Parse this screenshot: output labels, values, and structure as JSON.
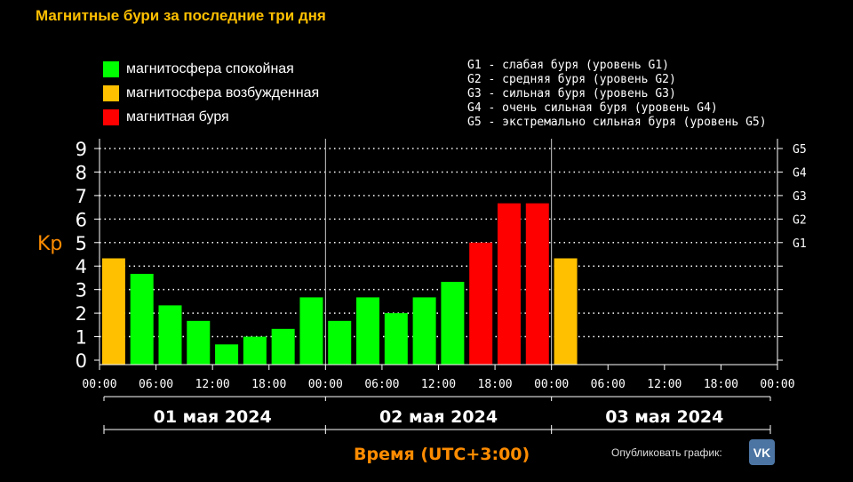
{
  "title": "Магнитные бури за последние три дня",
  "legend": [
    {
      "label": "магнитосфера спокойная",
      "color": "#00ff00"
    },
    {
      "label": "магнитосфера возбужденная",
      "color": "#ffc000"
    },
    {
      "label": "магнитная буря",
      "color": "#ff0000"
    }
  ],
  "g_legend": [
    "G1 - слабая буря (уровень G1)",
    "G2 - средняя буря (уровень G2)",
    "G3 - сильная буря (уровень G3)",
    "G4 - очень сильная буря (уровень G4)",
    "G5 - экстремально сильная буря (уровень G5)"
  ],
  "ylabel": "Kp",
  "xlabel": "Время (UTC+3:00)",
  "publish_label": "Опубликовать график:",
  "vk_icon": "vk-icon",
  "chart_data": {
    "type": "bar",
    "title": "Магнитные бури за последние три дня",
    "ylabel": "Kp",
    "xlabel": "Время (UTC+3:00)",
    "ylim": [
      0,
      9
    ],
    "yticks": [
      "0",
      "1",
      "2",
      "3",
      "4",
      "5",
      "6",
      "7",
      "8",
      "9"
    ],
    "right_ticks": [
      {
        "value": 5,
        "label": "G1"
      },
      {
        "value": 6,
        "label": "G2"
      },
      {
        "value": 7,
        "label": "G3"
      },
      {
        "value": 8,
        "label": "G4"
      },
      {
        "value": 9,
        "label": "G5"
      }
    ],
    "xticks": [
      "00:00",
      "06:00",
      "12:00",
      "18:00",
      "00:00",
      "06:00",
      "12:00",
      "18:00",
      "00:00",
      "06:00",
      "12:00",
      "18:00",
      "00:00"
    ],
    "days": [
      "01 мая 2024",
      "02 мая 2024",
      "03 мая 2024"
    ],
    "bar_hours": [
      0,
      3,
      6,
      9,
      12,
      15,
      18,
      21,
      24,
      27,
      30,
      33,
      36,
      39,
      42,
      45,
      48
    ],
    "values": [
      4.33,
      3.67,
      2.33,
      1.67,
      0.67,
      1.0,
      1.33,
      2.67,
      1.67,
      2.67,
      2.0,
      2.67,
      3.33,
      5.0,
      6.67,
      6.67,
      4.33
    ],
    "colors": [
      "#ffc000",
      "#00ff00",
      "#00ff00",
      "#00ff00",
      "#00ff00",
      "#00ff00",
      "#00ff00",
      "#00ff00",
      "#00ff00",
      "#00ff00",
      "#00ff00",
      "#00ff00",
      "#00ff00",
      "#ff0000",
      "#ff0000",
      "#ff0000",
      "#ffc000"
    ],
    "grid": true
  }
}
